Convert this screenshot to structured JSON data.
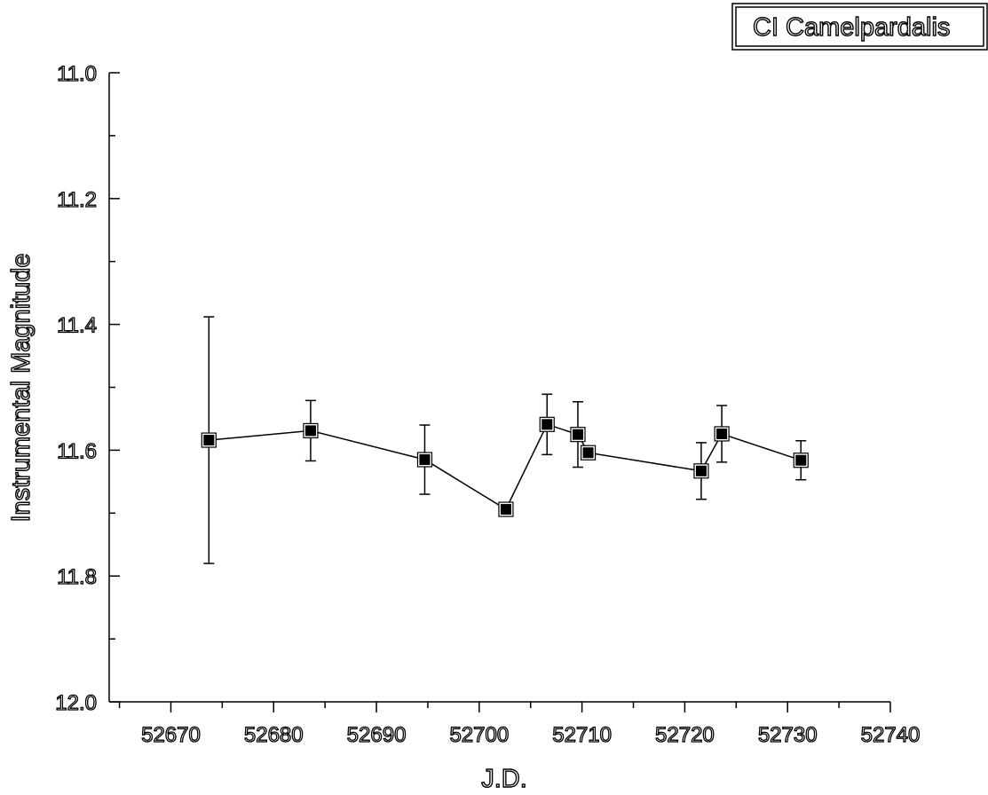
{
  "chart_data": {
    "type": "scatter",
    "title": "",
    "xlabel": "J.D.",
    "ylabel": "Instrumental Magnitude",
    "xlim": [
      52664,
      52740
    ],
    "ylim": [
      11.0,
      12.0
    ],
    "y_inverted": true,
    "x_ticks": [
      52670,
      52680,
      52690,
      52700,
      52710,
      52720,
      52730,
      52740
    ],
    "x_tick_labels": [
      "52670",
      "52680",
      "52690",
      "52700",
      "52710",
      "52720",
      "52730",
      "52740"
    ],
    "y_ticks": [
      11.0,
      11.2,
      11.4,
      11.6,
      11.8,
      12.0
    ],
    "y_tick_labels": [
      "11.0",
      "11.2",
      "11.4",
      "11.6",
      "11.8",
      "12.0"
    ],
    "grid": false,
    "legend_position": "top-right",
    "series": [
      {
        "name": "CI Camelpardalis",
        "marker": "square",
        "connected": true,
        "points": [
          {
            "x": 52673.7,
            "y": 11.584,
            "err": 0.196
          },
          {
            "x": 52683.6,
            "y": 11.569,
            "err": 0.048
          },
          {
            "x": 52694.7,
            "y": 11.615,
            "err": 0.055
          },
          {
            "x": 52702.6,
            "y": 11.694,
            "err": 0
          },
          {
            "x": 52706.6,
            "y": 11.559,
            "err": 0.048
          },
          {
            "x": 52709.6,
            "y": 11.575,
            "err": 0.052
          },
          {
            "x": 52710.6,
            "y": 11.604,
            "err": 0.01
          },
          {
            "x": 52721.6,
            "y": 11.633,
            "err": 0.045
          },
          {
            "x": 52723.6,
            "y": 11.574,
            "err": 0.045
          },
          {
            "x": 52731.3,
            "y": 11.616,
            "err": 0.031
          }
        ]
      }
    ]
  },
  "colors": {
    "axis": "#000000",
    "marker": "#000000",
    "background": "#ffffff"
  }
}
